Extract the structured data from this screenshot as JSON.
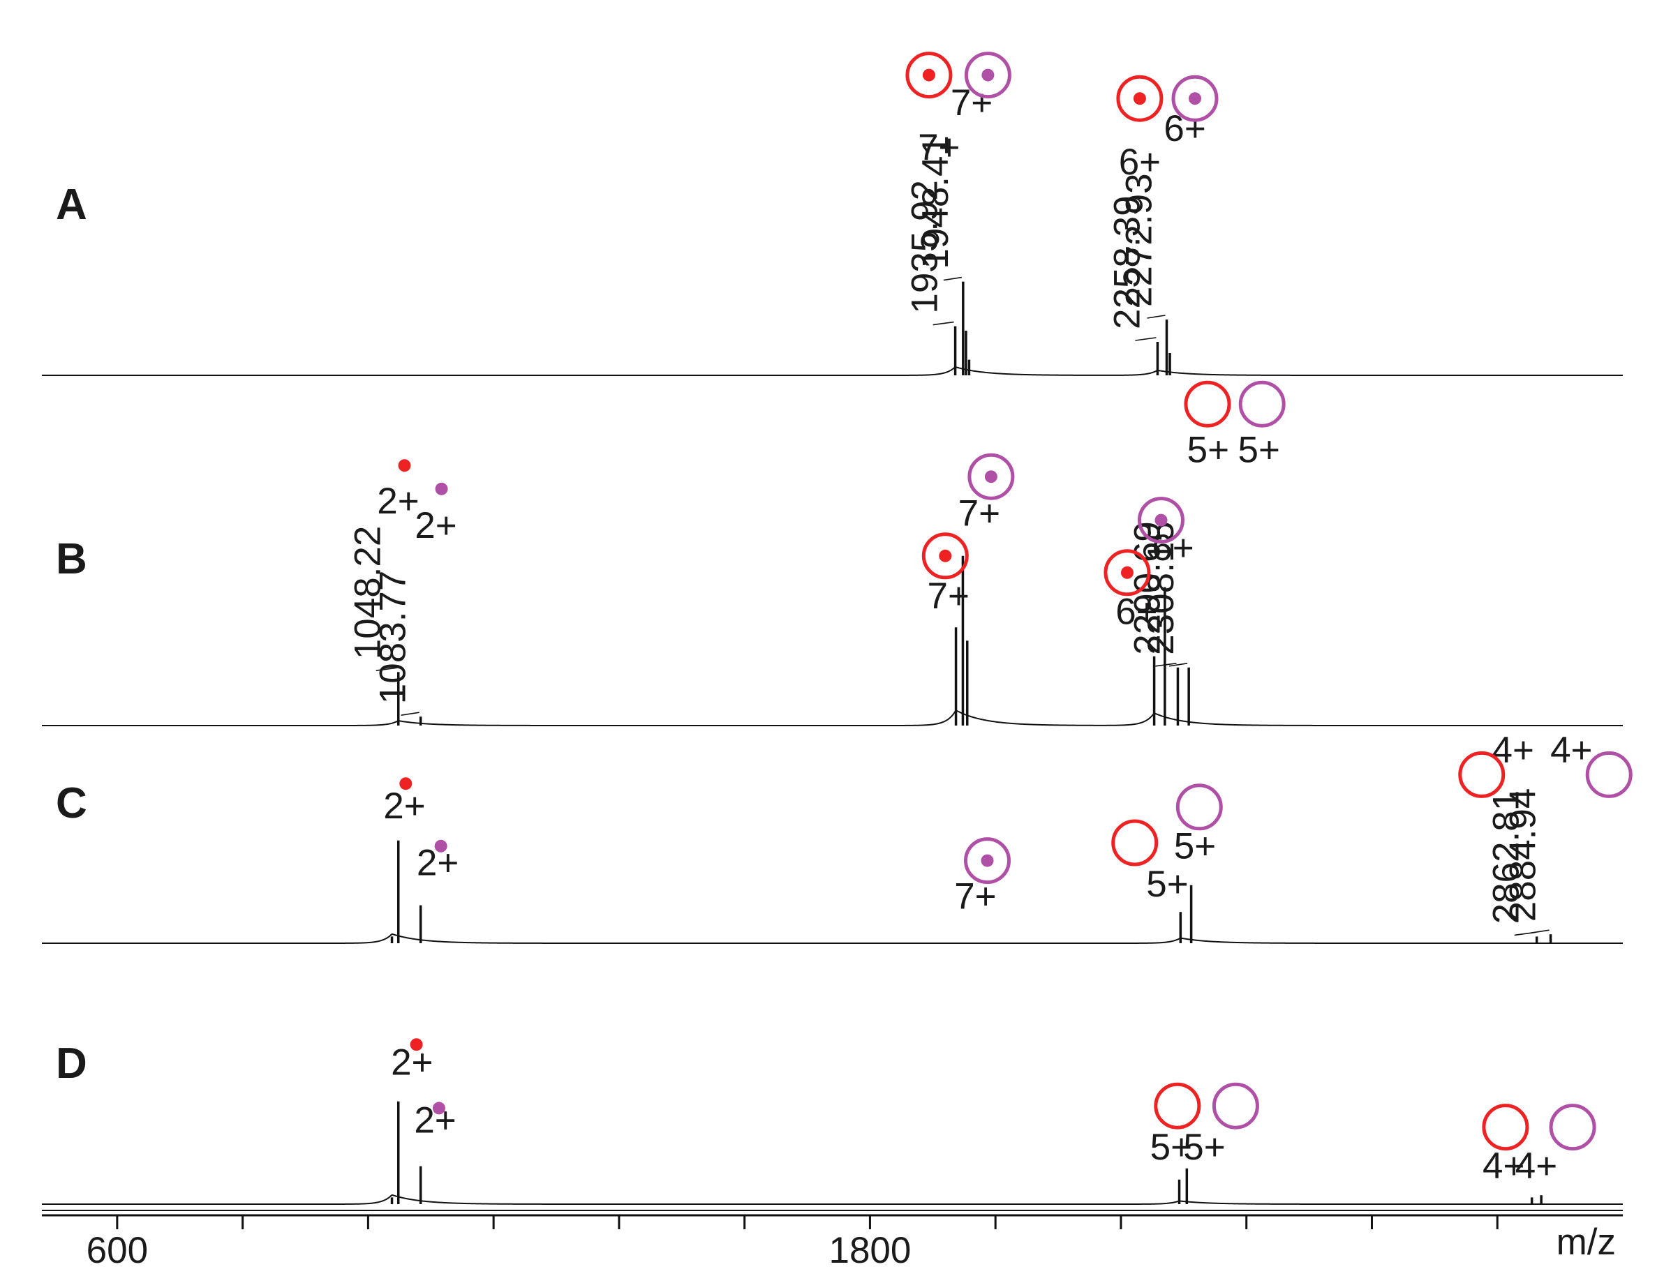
{
  "colors": {
    "red": "#ee2222",
    "purple": "#b04fa6",
    "trace": "#111111"
  },
  "chart_data": {
    "type": "line",
    "xlabel": "m/z",
    "xlim": [
      480,
      3000
    ],
    "x_ticks": [
      {
        "value": 600,
        "label": "600"
      },
      {
        "value": 800,
        "label": ""
      },
      {
        "value": 1000,
        "label": ""
      },
      {
        "value": 1200,
        "label": ""
      },
      {
        "value": 1400,
        "label": ""
      },
      {
        "value": 1600,
        "label": ""
      },
      {
        "value": 1800,
        "label": "1800"
      },
      {
        "value": 2000,
        "label": ""
      },
      {
        "value": 2200,
        "label": ""
      },
      {
        "value": 2400,
        "label": ""
      },
      {
        "value": 2600,
        "label": ""
      },
      {
        "value": 2800,
        "label": ""
      }
    ],
    "panels": [
      {
        "label": "A",
        "peaks": [
          {
            "mz": 1935.92,
            "rel": 0.44,
            "label": "1935.92"
          },
          {
            "mz": 1948.41,
            "rel": 0.84,
            "label": "1948.41"
          },
          {
            "mz": 1953.0,
            "rel": 0.4,
            "label": ""
          },
          {
            "mz": 1958.0,
            "rel": 0.14,
            "label": ""
          },
          {
            "mz": 2258.39,
            "rel": 0.3,
            "label": "2258.39"
          },
          {
            "mz": 2272.93,
            "rel": 0.5,
            "label": "2272.93"
          },
          {
            "mz": 2278.0,
            "rel": 0.2,
            "label": ""
          }
        ],
        "charge_labels": [
          {
            "mz": 1910,
            "level": 1.93,
            "text": "7+"
          },
          {
            "mz": 1962,
            "level": 2.33,
            "text": "7+"
          },
          {
            "mz": 2230,
            "level": 1.8,
            "text": "6+"
          },
          {
            "mz": 2302,
            "level": 2.1,
            "text": "6+"
          }
        ],
        "markers": [
          {
            "mz": 1894,
            "level": 2.69,
            "color": "red",
            "shape": "dotted-circle"
          },
          {
            "mz": 1988,
            "level": 2.69,
            "color": "purple",
            "shape": "dotted-circle"
          },
          {
            "mz": 2230,
            "level": 2.48,
            "color": "red",
            "shape": "dotted-circle"
          },
          {
            "mz": 2318,
            "level": 2.48,
            "color": "purple",
            "shape": "dotted-circle"
          }
        ]
      },
      {
        "label": "B",
        "peaks": [
          {
            "mz": 1048.22,
            "rel": 0.48,
            "label": "1048.22"
          },
          {
            "mz": 1083.77,
            "rel": 0.08,
            "label": "1083.77"
          },
          {
            "mz": 1937.0,
            "rel": 0.88,
            "label": ""
          },
          {
            "mz": 1948.0,
            "rel": 1.52,
            "label": ""
          },
          {
            "mz": 1955.0,
            "rel": 0.76,
            "label": ""
          },
          {
            "mz": 2253.0,
            "rel": 0.62,
            "label": ""
          },
          {
            "mz": 2270.0,
            "rel": 1.24,
            "label": ""
          },
          {
            "mz": 2290.69,
            "rel": 0.52,
            "label": "2290.69"
          },
          {
            "mz": 2308.15,
            "rel": 0.52,
            "label": "2308.15"
          }
        ],
        "charge_labels": [
          {
            "mz": 1048,
            "level": 1.9,
            "text": "2+"
          },
          {
            "mz": 1108,
            "level": 1.68,
            "text": "2+"
          },
          {
            "mz": 1925,
            "level": 1.05,
            "text": "7+"
          },
          {
            "mz": 1974,
            "level": 1.79,
            "text": "7+"
          },
          {
            "mz": 2225,
            "level": 0.91,
            "text": "6+"
          },
          {
            "mz": 2283,
            "level": 1.48,
            "text": "6+"
          },
          {
            "mz": 2339,
            "level": 2.36,
            "text": "5+"
          },
          {
            "mz": 2420,
            "level": 2.36,
            "text": "5+"
          }
        ],
        "markers": [
          {
            "mz": 1058,
            "level": 2.33,
            "color": "red",
            "shape": "dot"
          },
          {
            "mz": 1117,
            "level": 2.12,
            "color": "purple",
            "shape": "dot"
          },
          {
            "mz": 1920,
            "level": 1.52,
            "color": "red",
            "shape": "dotted-circle"
          },
          {
            "mz": 1993,
            "level": 2.23,
            "color": "purple",
            "shape": "dotted-circle"
          },
          {
            "mz": 2210,
            "level": 1.37,
            "color": "red",
            "shape": "dotted-circle"
          },
          {
            "mz": 2264,
            "level": 1.84,
            "color": "purple",
            "shape": "dotted-circle"
          },
          {
            "mz": 2338,
            "level": 2.88,
            "color": "red",
            "shape": "circle"
          },
          {
            "mz": 2425,
            "level": 2.88,
            "color": "purple",
            "shape": "circle"
          }
        ]
      },
      {
        "label": "C",
        "peaks": [
          {
            "mz": 1038.0,
            "rel": 0.06,
            "label": ""
          },
          {
            "mz": 1048.22,
            "rel": 0.92,
            "label": ""
          },
          {
            "mz": 1083.77,
            "rel": 0.34,
            "label": ""
          },
          {
            "mz": 2295.0,
            "rel": 0.28,
            "label": ""
          },
          {
            "mz": 2312.0,
            "rel": 0.52,
            "label": ""
          },
          {
            "mz": 2862.81,
            "rel": 0.06,
            "label": "2862.81"
          },
          {
            "mz": 2884.94,
            "rel": 0.08,
            "label": "2884.94"
          }
        ],
        "charge_labels": [
          {
            "mz": 1058,
            "level": 1.12,
            "text": "2+"
          },
          {
            "mz": 1111,
            "level": 0.61,
            "text": "2+"
          },
          {
            "mz": 1968,
            "level": 0.31,
            "text": "7+"
          },
          {
            "mz": 2274,
            "level": 0.42,
            "text": "5+"
          },
          {
            "mz": 2318,
            "level": 0.76,
            "text": "5+"
          },
          {
            "mz": 2825,
            "level": 1.62,
            "text": "4+"
          },
          {
            "mz": 2918,
            "level": 1.62,
            "text": "4+"
          }
        ],
        "markers": [
          {
            "mz": 1060,
            "level": 1.43,
            "color": "red",
            "shape": "dot"
          },
          {
            "mz": 1116,
            "level": 0.87,
            "color": "purple",
            "shape": "dot"
          },
          {
            "mz": 1987,
            "level": 0.74,
            "color": "purple",
            "shape": "dotted-circle"
          },
          {
            "mz": 2222,
            "level": 0.9,
            "color": "red",
            "shape": "circle"
          },
          {
            "mz": 2325,
            "level": 1.22,
            "color": "purple",
            "shape": "circle"
          },
          {
            "mz": 2775,
            "level": 1.51,
            "color": "red",
            "shape": "circle"
          },
          {
            "mz": 2978,
            "level": 1.51,
            "color": "purple",
            "shape": "circle"
          }
        ]
      },
      {
        "label": "D",
        "peaks": [
          {
            "mz": 1038.0,
            "rel": 0.06,
            "label": ""
          },
          {
            "mz": 1048.22,
            "rel": 0.92,
            "label": ""
          },
          {
            "mz": 1083.77,
            "rel": 0.34,
            "label": ""
          },
          {
            "mz": 2293.0,
            "rel": 0.22,
            "label": ""
          },
          {
            "mz": 2305.0,
            "rel": 0.32,
            "label": ""
          },
          {
            "mz": 2855.0,
            "rel": 0.06,
            "label": ""
          },
          {
            "mz": 2870.0,
            "rel": 0.08,
            "label": ""
          }
        ],
        "charge_labels": [
          {
            "mz": 1070,
            "level": 1.16,
            "text": "2+"
          },
          {
            "mz": 1107,
            "level": 0.64,
            "text": "2+"
          },
          {
            "mz": 2280,
            "level": 0.4,
            "text": "5+"
          },
          {
            "mz": 2333,
            "level": 0.4,
            "text": "5+"
          },
          {
            "mz": 2810,
            "level": 0.23,
            "text": "4+"
          },
          {
            "mz": 2862,
            "level": 0.23,
            "text": "4+"
          }
        ],
        "markers": [
          {
            "mz": 1077,
            "level": 1.43,
            "color": "red",
            "shape": "dot"
          },
          {
            "mz": 1113,
            "level": 0.86,
            "color": "purple",
            "shape": "dot"
          },
          {
            "mz": 2290,
            "level": 0.88,
            "color": "red",
            "shape": "circle"
          },
          {
            "mz": 2383,
            "level": 0.88,
            "color": "purple",
            "shape": "circle"
          },
          {
            "mz": 2813,
            "level": 0.69,
            "color": "red",
            "shape": "circle"
          },
          {
            "mz": 2920,
            "level": 0.69,
            "color": "purple",
            "shape": "circle"
          }
        ]
      }
    ]
  }
}
